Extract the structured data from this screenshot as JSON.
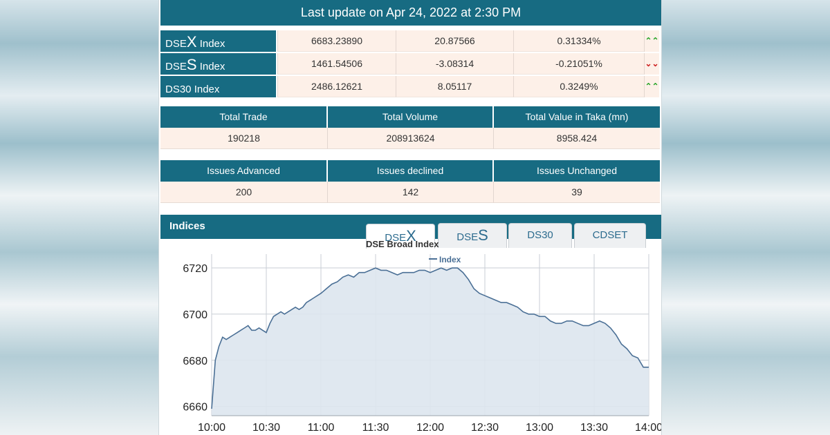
{
  "last_update": "Last update on Apr 24, 2022 at 2:30 PM",
  "indices": [
    {
      "prefix": "DSE",
      "big": "X",
      "suffix": " Index",
      "value": "6683.23890",
      "change": "20.87566",
      "percent": "0.31334%",
      "trend": "up",
      "arrow": "⌃⌃"
    },
    {
      "prefix": "DSE",
      "big": "S",
      "suffix": " Index",
      "value": "1461.54506",
      "change": "-3.08314",
      "percent": "-0.21051%",
      "trend": "down",
      "arrow": "⌄⌄"
    },
    {
      "prefix": "DS30 Index",
      "big": "",
      "suffix": "",
      "value": "2486.12621",
      "change": "8.05117",
      "percent": "0.3249%",
      "trend": "up",
      "arrow": "⌃⌃"
    }
  ],
  "trade_summary": {
    "headers": [
      "Total Trade",
      "Total Volume",
      "Total Value in Taka (mn)"
    ],
    "values": [
      "190218",
      "208913624",
      "8958.424"
    ]
  },
  "issues_summary": {
    "headers": [
      "Issues Advanced",
      "Issues declined",
      "Issues Unchanged"
    ],
    "values": [
      "200",
      "142",
      "39"
    ]
  },
  "indices_section": {
    "title": "Indices",
    "tabs": [
      {
        "prefix": "DSE",
        "big": "X",
        "active": true
      },
      {
        "prefix": "DSE",
        "big": "S",
        "active": false
      },
      {
        "prefix": "DS30",
        "big": "",
        "active": false
      },
      {
        "prefix": "CDSET",
        "big": "",
        "active": false
      }
    ]
  },
  "colors": {
    "header_teal": "#176b82",
    "cell_bg": "#fdf0e8",
    "up": "#2aa52a",
    "down": "#cc1c1c",
    "line": "#4a6f95",
    "area": "#dde5ee"
  },
  "chart_data": {
    "type": "area",
    "title": "DSE Broad Index",
    "legend": "Index",
    "legend_position": "top-center",
    "grid": true,
    "x_ticks": [
      "10:00",
      "10:30",
      "11:00",
      "11:30",
      "12:00",
      "12:30",
      "13:00",
      "13:30",
      "14:00"
    ],
    "y_ticks": [
      6660,
      6680,
      6700,
      6720
    ],
    "ylim": [
      6656,
      6726
    ],
    "x_range": [
      "10:00",
      "14:00"
    ],
    "series": [
      {
        "name": "Index",
        "x": [
          "10:00",
          "10:02",
          "10:04",
          "10:06",
          "10:08",
          "10:10",
          "10:12",
          "10:14",
          "10:16",
          "10:18",
          "10:20",
          "10:22",
          "10:24",
          "10:26",
          "10:28",
          "10:30",
          "10:32",
          "10:34",
          "10:36",
          "10:38",
          "10:40",
          "10:42",
          "10:44",
          "10:46",
          "10:48",
          "10:50",
          "10:52",
          "10:54",
          "10:56",
          "10:58",
          "11:00",
          "11:03",
          "11:06",
          "11:09",
          "11:12",
          "11:15",
          "11:18",
          "11:21",
          "11:24",
          "11:27",
          "11:30",
          "11:33",
          "11:36",
          "11:39",
          "11:42",
          "11:45",
          "11:48",
          "11:51",
          "11:54",
          "11:57",
          "12:00",
          "12:03",
          "12:06",
          "12:09",
          "12:12",
          "12:15",
          "12:18",
          "12:21",
          "12:24",
          "12:27",
          "12:30",
          "12:33",
          "12:36",
          "12:39",
          "12:42",
          "12:45",
          "12:48",
          "12:51",
          "12:54",
          "12:57",
          "13:00",
          "13:03",
          "13:06",
          "13:09",
          "13:12",
          "13:15",
          "13:18",
          "13:21",
          "13:24",
          "13:27",
          "13:30",
          "13:33",
          "13:36",
          "13:39",
          "13:42",
          "13:45",
          "13:48",
          "13:51",
          "13:54",
          "13:57",
          "14:00"
        ],
        "values": [
          6659,
          6680,
          6686,
          6690,
          6689,
          6690,
          6691,
          6692,
          6693,
          6694,
          6695,
          6693,
          6693,
          6694,
          6693,
          6692,
          6696,
          6699,
          6700,
          6701,
          6700,
          6701,
          6702,
          6703,
          6702,
          6703,
          6705,
          6706,
          6707,
          6708,
          6709,
          6711,
          6713,
          6714,
          6716,
          6717,
          6716,
          6718,
          6718,
          6719,
          6720,
          6719,
          6719,
          6718,
          6717,
          6718,
          6718,
          6718,
          6719,
          6719,
          6718,
          6719,
          6720,
          6719,
          6720,
          6720,
          6718,
          6715,
          6711,
          6709,
          6708,
          6707,
          6706,
          6705,
          6705,
          6704,
          6703,
          6701,
          6700,
          6700,
          6699,
          6699,
          6697,
          6696,
          6696,
          6697,
          6697,
          6696,
          6695,
          6695,
          6696,
          6697,
          6696,
          6694,
          6691,
          6687,
          6685,
          6682,
          6681,
          6677,
          6677
        ]
      }
    ]
  }
}
